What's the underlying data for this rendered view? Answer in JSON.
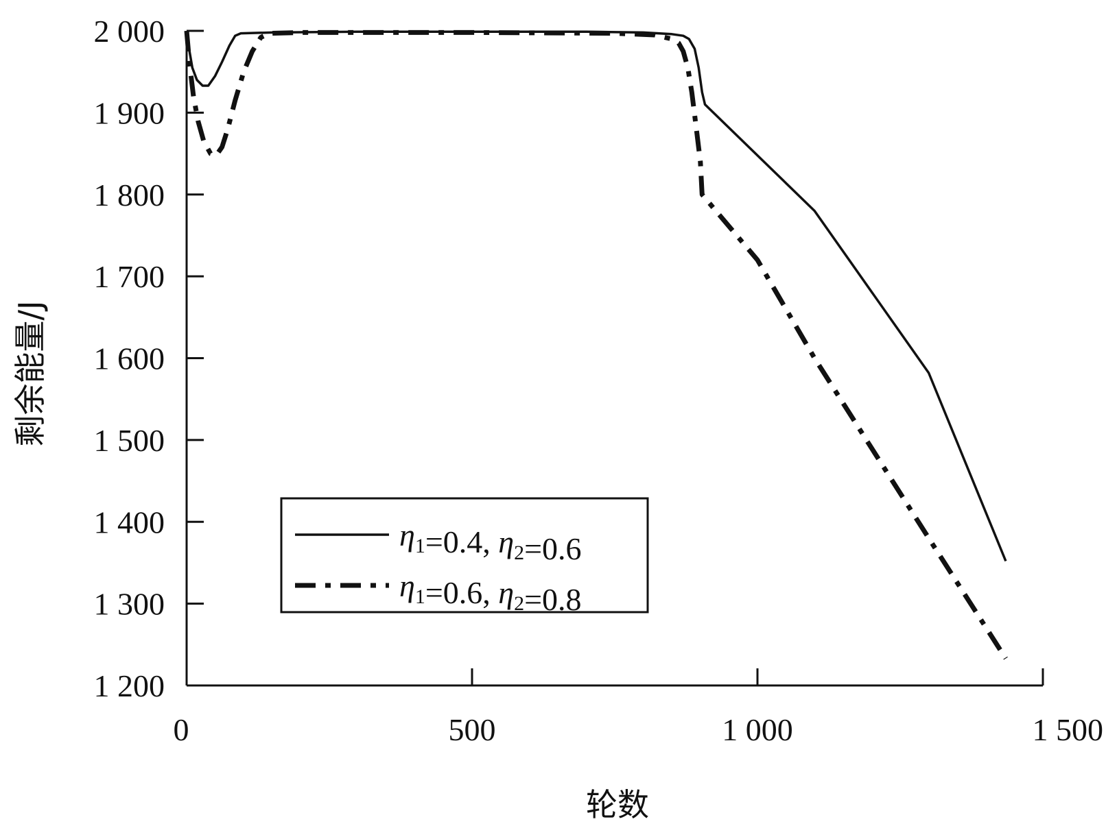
{
  "chart_data": {
    "type": "line",
    "title": "",
    "xlabel": "轮数",
    "ylabel": "剩余能量/J",
    "xlim": [
      0,
      1500
    ],
    "ylim": [
      1200,
      2000
    ],
    "grid": false,
    "legend_position": "bottom-left",
    "x_ticks": [
      {
        "value": 0,
        "label": "0"
      },
      {
        "value": 500,
        "label": "500"
      },
      {
        "value": 1000,
        "label": "1 000"
      },
      {
        "value": 1500,
        "label": "1 500"
      }
    ],
    "y_ticks": [
      {
        "value": 2000,
        "label": "2 000"
      },
      {
        "value": 1900,
        "label": "1 900"
      },
      {
        "value": 1800,
        "label": "1 800"
      },
      {
        "value": 1700,
        "label": "1 700"
      },
      {
        "value": 1600,
        "label": "1 600"
      },
      {
        "value": 1500,
        "label": "1 500"
      },
      {
        "value": 1400,
        "label": "1 400"
      },
      {
        "value": 1300,
        "label": "1 300"
      },
      {
        "value": 1200,
        "label": "1 200"
      }
    ],
    "series": [
      {
        "legend": {
          "eta1": "η",
          "sub1": "1",
          "mid": "=0.4, ",
          "eta2": "η",
          "sub2": "2",
          "tail": "=0.6"
        },
        "style": "solid",
        "color": "#111111",
        "points": [
          [
            0,
            2000
          ],
          [
            5,
            1975
          ],
          [
            10,
            1955
          ],
          [
            18,
            1940
          ],
          [
            28,
            1933
          ],
          [
            38,
            1933
          ],
          [
            50,
            1945
          ],
          [
            62,
            1962
          ],
          [
            75,
            1982
          ],
          [
            85,
            1994
          ],
          [
            95,
            1997
          ],
          [
            150,
            1998
          ],
          [
            300,
            1999
          ],
          [
            500,
            1999
          ],
          [
            700,
            1999
          ],
          [
            800,
            1998
          ],
          [
            850,
            1996
          ],
          [
            870,
            1994
          ],
          [
            880,
            1990
          ],
          [
            890,
            1978
          ],
          [
            897,
            1955
          ],
          [
            903,
            1925
          ],
          [
            908,
            1910
          ],
          [
            1100,
            1780
          ],
          [
            1300,
            1582
          ],
          [
            1435,
            1352
          ]
        ]
      },
      {
        "legend": {
          "eta1": "η",
          "sub1": "1",
          "mid": "=0.6, ",
          "eta2": "η",
          "sub2": "2",
          "tail": "=0.8"
        },
        "style": "dashdot",
        "color": "#111111",
        "points": [
          [
            0,
            2000
          ],
          [
            5,
            1960
          ],
          [
            12,
            1920
          ],
          [
            20,
            1890
          ],
          [
            30,
            1865
          ],
          [
            42,
            1850
          ],
          [
            52,
            1848
          ],
          [
            62,
            1858
          ],
          [
            72,
            1880
          ],
          [
            85,
            1915
          ],
          [
            100,
            1950
          ],
          [
            115,
            1975
          ],
          [
            130,
            1992
          ],
          [
            145,
            1997
          ],
          [
            200,
            1998
          ],
          [
            500,
            1998
          ],
          [
            750,
            1997
          ],
          [
            820,
            1995
          ],
          [
            850,
            1990
          ],
          [
            862,
            1985
          ],
          [
            870,
            1975
          ],
          [
            878,
            1955
          ],
          [
            885,
            1925
          ],
          [
            893,
            1880
          ],
          [
            900,
            1840
          ],
          [
            903,
            1800
          ],
          [
            1000,
            1720
          ],
          [
            1100,
            1600
          ],
          [
            1300,
            1380
          ],
          [
            1435,
            1233
          ]
        ]
      }
    ]
  }
}
